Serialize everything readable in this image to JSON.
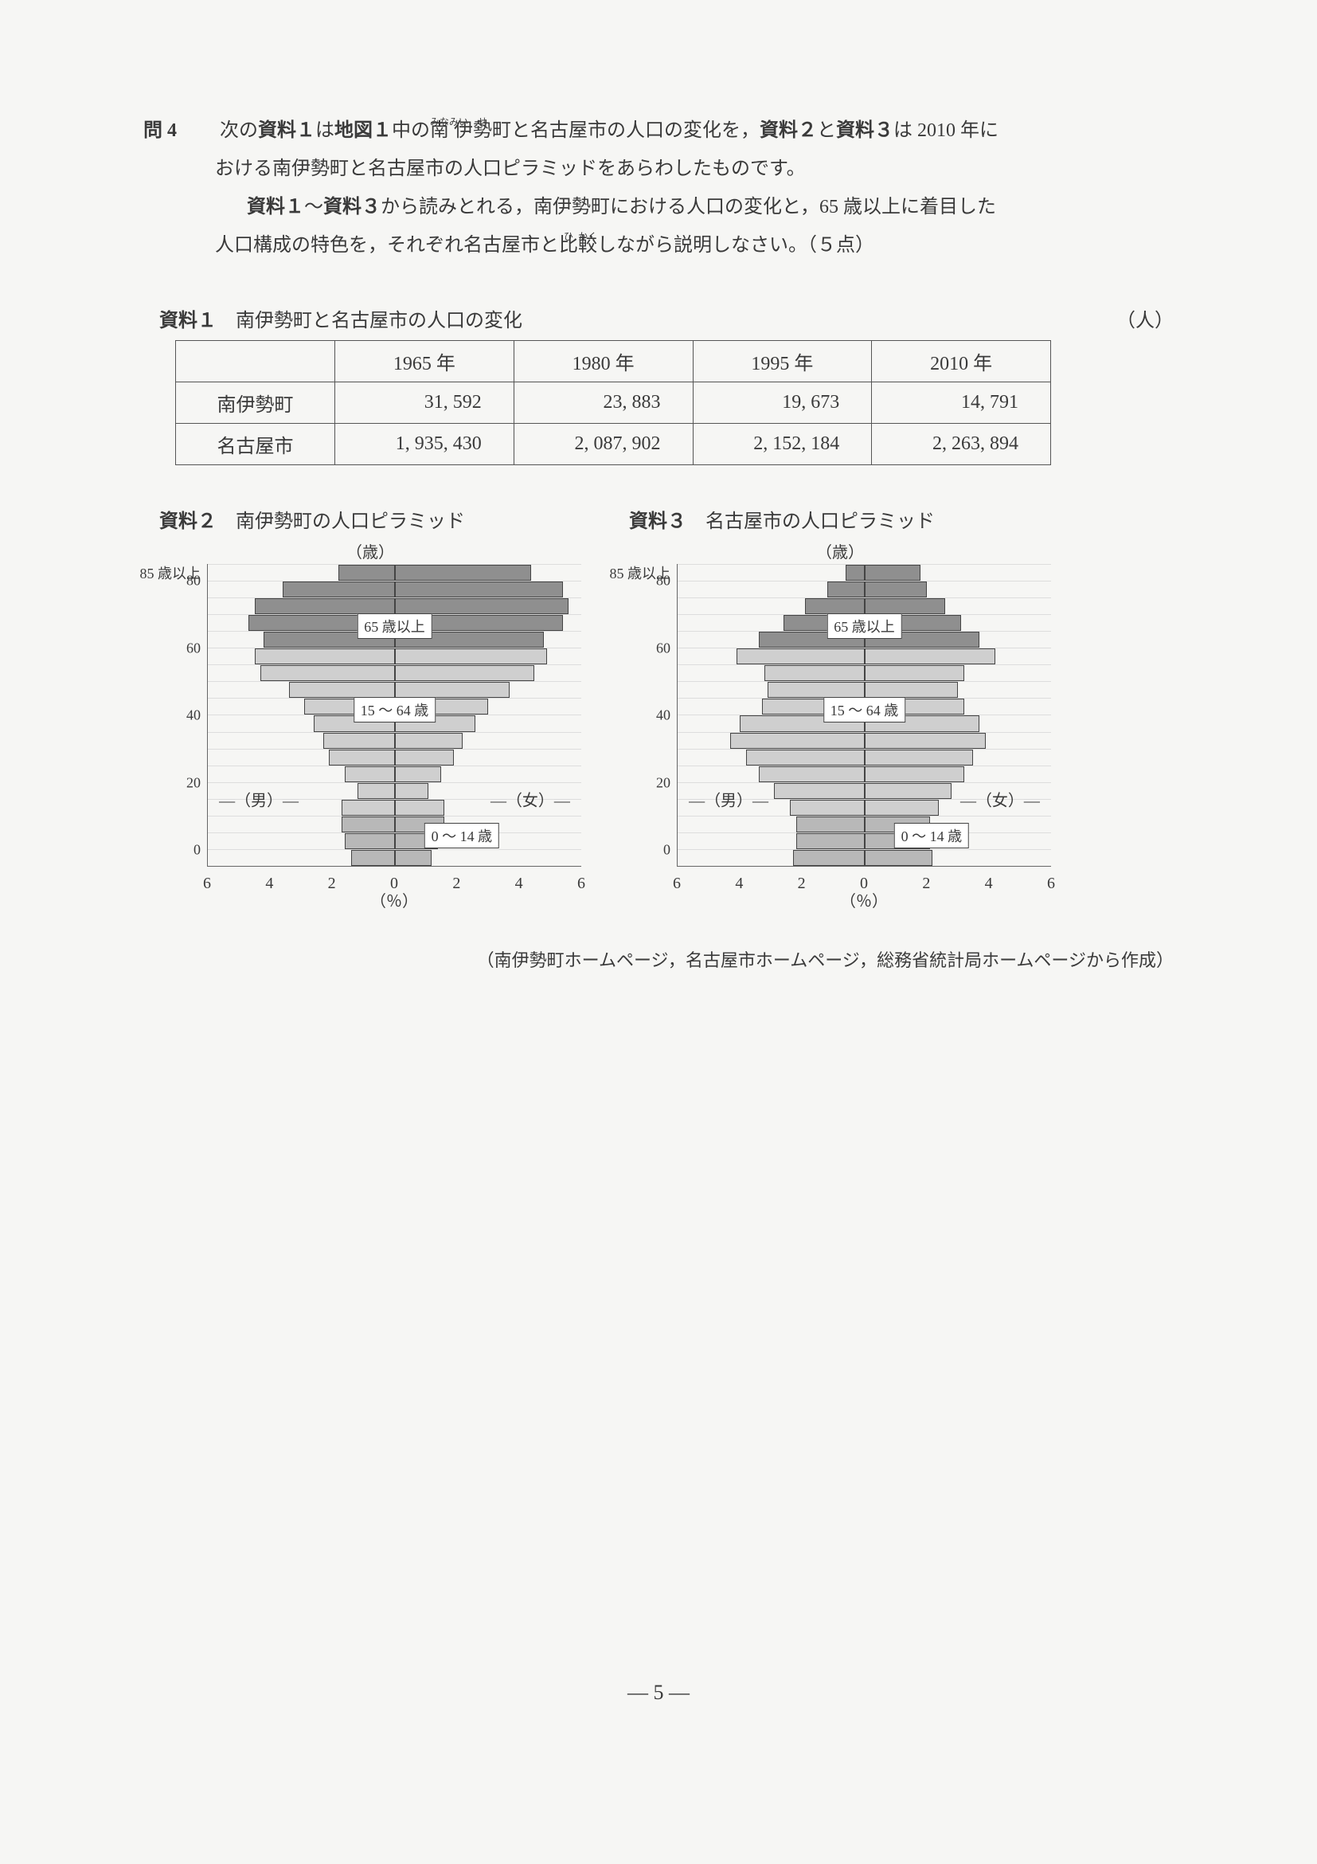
{
  "question": {
    "label": "問 4",
    "line1_pre": "次の",
    "line1_b1": "資料１",
    "line1_mid1": "は",
    "line1_b2": "地図１",
    "line1_mid2": "中の",
    "ruby1_base": "南",
    "ruby1_rt": "みなみ",
    "ruby2_base": "伊",
    "ruby2_rt": "い",
    "ruby3_base": "勢",
    "ruby3_rt": "せ",
    "line1_post1": "町と名古屋市の人口の変化を，",
    "line1_b3": "資料２",
    "line1_mid3": "と",
    "line1_b4": "資料３",
    "line1_post2": "は 2010 年に",
    "line2": "おける南伊勢町と名古屋市の人口ピラミッドをあらわしたものです。",
    "line3_pre": "",
    "line3_b1": "資料１",
    "line3_mid1": "～",
    "line3_b2": "資料３",
    "line3_post": "から読みとれる，南伊勢町における人口の変化と，65 歳以上に着目した",
    "line4_pre": "人口構成の特色を，それぞれ名古屋市と",
    "ruby4_base": "比",
    "ruby4_rt": "ひ",
    "ruby5_base": "較",
    "ruby5_rt": "かく",
    "line4_post": "しながら説明しなさい。（５点）"
  },
  "table": {
    "title_b": "資料１",
    "title_rest": "　南伊勢町と名古屋市の人口の変化",
    "unit": "（人）",
    "headers": [
      "",
      "1965 年",
      "1980 年",
      "1995 年",
      "2010 年"
    ],
    "rows": [
      {
        "label": "南伊勢町",
        "cells": [
          "31, 592",
          "23, 883",
          "19, 673",
          "14, 791"
        ]
      },
      {
        "label": "名古屋市",
        "cells": [
          "1, 935, 430",
          "2, 087, 902",
          "2, 152, 184",
          "2, 263, 894"
        ]
      }
    ]
  },
  "pyramid_common": {
    "age_unit": "（歳）",
    "pct_unit": "（％）",
    "top_label": "85 歳以上",
    "y_ticks": [
      0,
      20,
      40,
      60,
      80
    ],
    "x_ticks": [
      6,
      4,
      2,
      0,
      2,
      4,
      6
    ],
    "x_max": 6,
    "male_label": "（男）",
    "female_label": "（女）",
    "annot65": "65 歳以上",
    "annot15": "15 ～ 64 歳",
    "annot0": "0 ～ 14 歳",
    "colors": {
      "group65": "#8f8f8f",
      "group15": "#cfcfcf",
      "group0": "#b8b8b8",
      "border": "#444444",
      "grid": "#dddddd"
    }
  },
  "pyramid2": {
    "title_b": "資料２",
    "title_rest": "　南伊勢町の人口ピラミッド",
    "bars": [
      {
        "g": 0,
        "m": 1.4,
        "f": 1.2
      },
      {
        "g": 0,
        "m": 1.6,
        "f": 1.4
      },
      {
        "g": 0,
        "m": 1.7,
        "f": 1.6
      },
      {
        "g": 15,
        "m": 1.7,
        "f": 1.6
      },
      {
        "g": 15,
        "m": 1.2,
        "f": 1.1
      },
      {
        "g": 15,
        "m": 1.6,
        "f": 1.5
      },
      {
        "g": 15,
        "m": 2.1,
        "f": 1.9
      },
      {
        "g": 15,
        "m": 2.3,
        "f": 2.2
      },
      {
        "g": 15,
        "m": 2.6,
        "f": 2.6
      },
      {
        "g": 15,
        "m": 2.9,
        "f": 3.0
      },
      {
        "g": 15,
        "m": 3.4,
        "f": 3.7
      },
      {
        "g": 15,
        "m": 4.3,
        "f": 4.5
      },
      {
        "g": 15,
        "m": 4.5,
        "f": 4.9
      },
      {
        "g": 65,
        "m": 4.2,
        "f": 4.8
      },
      {
        "g": 65,
        "m": 4.7,
        "f": 5.4
      },
      {
        "g": 65,
        "m": 4.5,
        "f": 5.6
      },
      {
        "g": 65,
        "m": 3.6,
        "f": 5.4
      },
      {
        "g": 65,
        "m": 1.8,
        "f": 4.4
      }
    ]
  },
  "pyramid3": {
    "title_b": "資料３",
    "title_rest": "　名古屋市の人口ピラミッド",
    "bars": [
      {
        "g": 0,
        "m": 2.3,
        "f": 2.2
      },
      {
        "g": 0,
        "m": 2.2,
        "f": 2.1
      },
      {
        "g": 0,
        "m": 2.2,
        "f": 2.1
      },
      {
        "g": 15,
        "m": 2.4,
        "f": 2.4
      },
      {
        "g": 15,
        "m": 2.9,
        "f": 2.8
      },
      {
        "g": 15,
        "m": 3.4,
        "f": 3.2
      },
      {
        "g": 15,
        "m": 3.8,
        "f": 3.5
      },
      {
        "g": 15,
        "m": 4.3,
        "f": 3.9
      },
      {
        "g": 15,
        "m": 4.0,
        "f": 3.7
      },
      {
        "g": 15,
        "m": 3.3,
        "f": 3.2
      },
      {
        "g": 15,
        "m": 3.1,
        "f": 3.0
      },
      {
        "g": 15,
        "m": 3.2,
        "f": 3.2
      },
      {
        "g": 15,
        "m": 4.1,
        "f": 4.2
      },
      {
        "g": 65,
        "m": 3.4,
        "f": 3.7
      },
      {
        "g": 65,
        "m": 2.6,
        "f": 3.1
      },
      {
        "g": 65,
        "m": 1.9,
        "f": 2.6
      },
      {
        "g": 65,
        "m": 1.2,
        "f": 2.0
      },
      {
        "g": 65,
        "m": 0.6,
        "f": 1.8
      }
    ]
  },
  "source": "（南伊勢町ホームページ，名古屋市ホームページ，総務省統計局ホームページから作成）",
  "page_number": "— 5 —"
}
